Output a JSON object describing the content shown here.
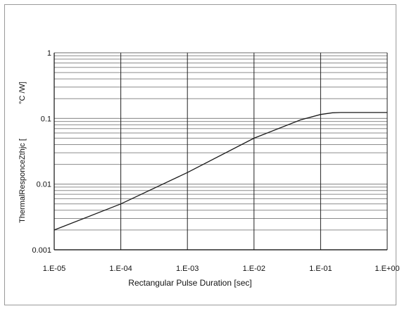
{
  "chart_data": {
    "type": "line",
    "title": "",
    "xlabel": "Rectangular Pulse Duration [sec]",
    "ylabel": "ThermalResponceZthjc [",
    "ylabel_unit": "°C /W]",
    "x_scale": "log",
    "y_scale": "log",
    "xlim": [
      1e-05,
      1
    ],
    "ylim": [
      0.001,
      1
    ],
    "x_ticks": [
      "1.E-05",
      "1.E-04",
      "1.E-03",
      "1.E-02",
      "1.E-01",
      "1.E+00"
    ],
    "y_ticks": [
      "0.001",
      "0.01",
      "0.1",
      "1"
    ],
    "grid": true,
    "line_color": "#1a1a1a",
    "grid_color": "#8c8c8c",
    "series": [
      {
        "name": "",
        "x": [
          1e-05,
          0.0001,
          0.001,
          0.01,
          0.05,
          0.1,
          0.15,
          0.2,
          0.5,
          1
        ],
        "y": [
          0.002,
          0.005,
          0.015,
          0.05,
          0.095,
          0.115,
          0.122,
          0.123,
          0.123,
          0.123
        ]
      }
    ]
  }
}
